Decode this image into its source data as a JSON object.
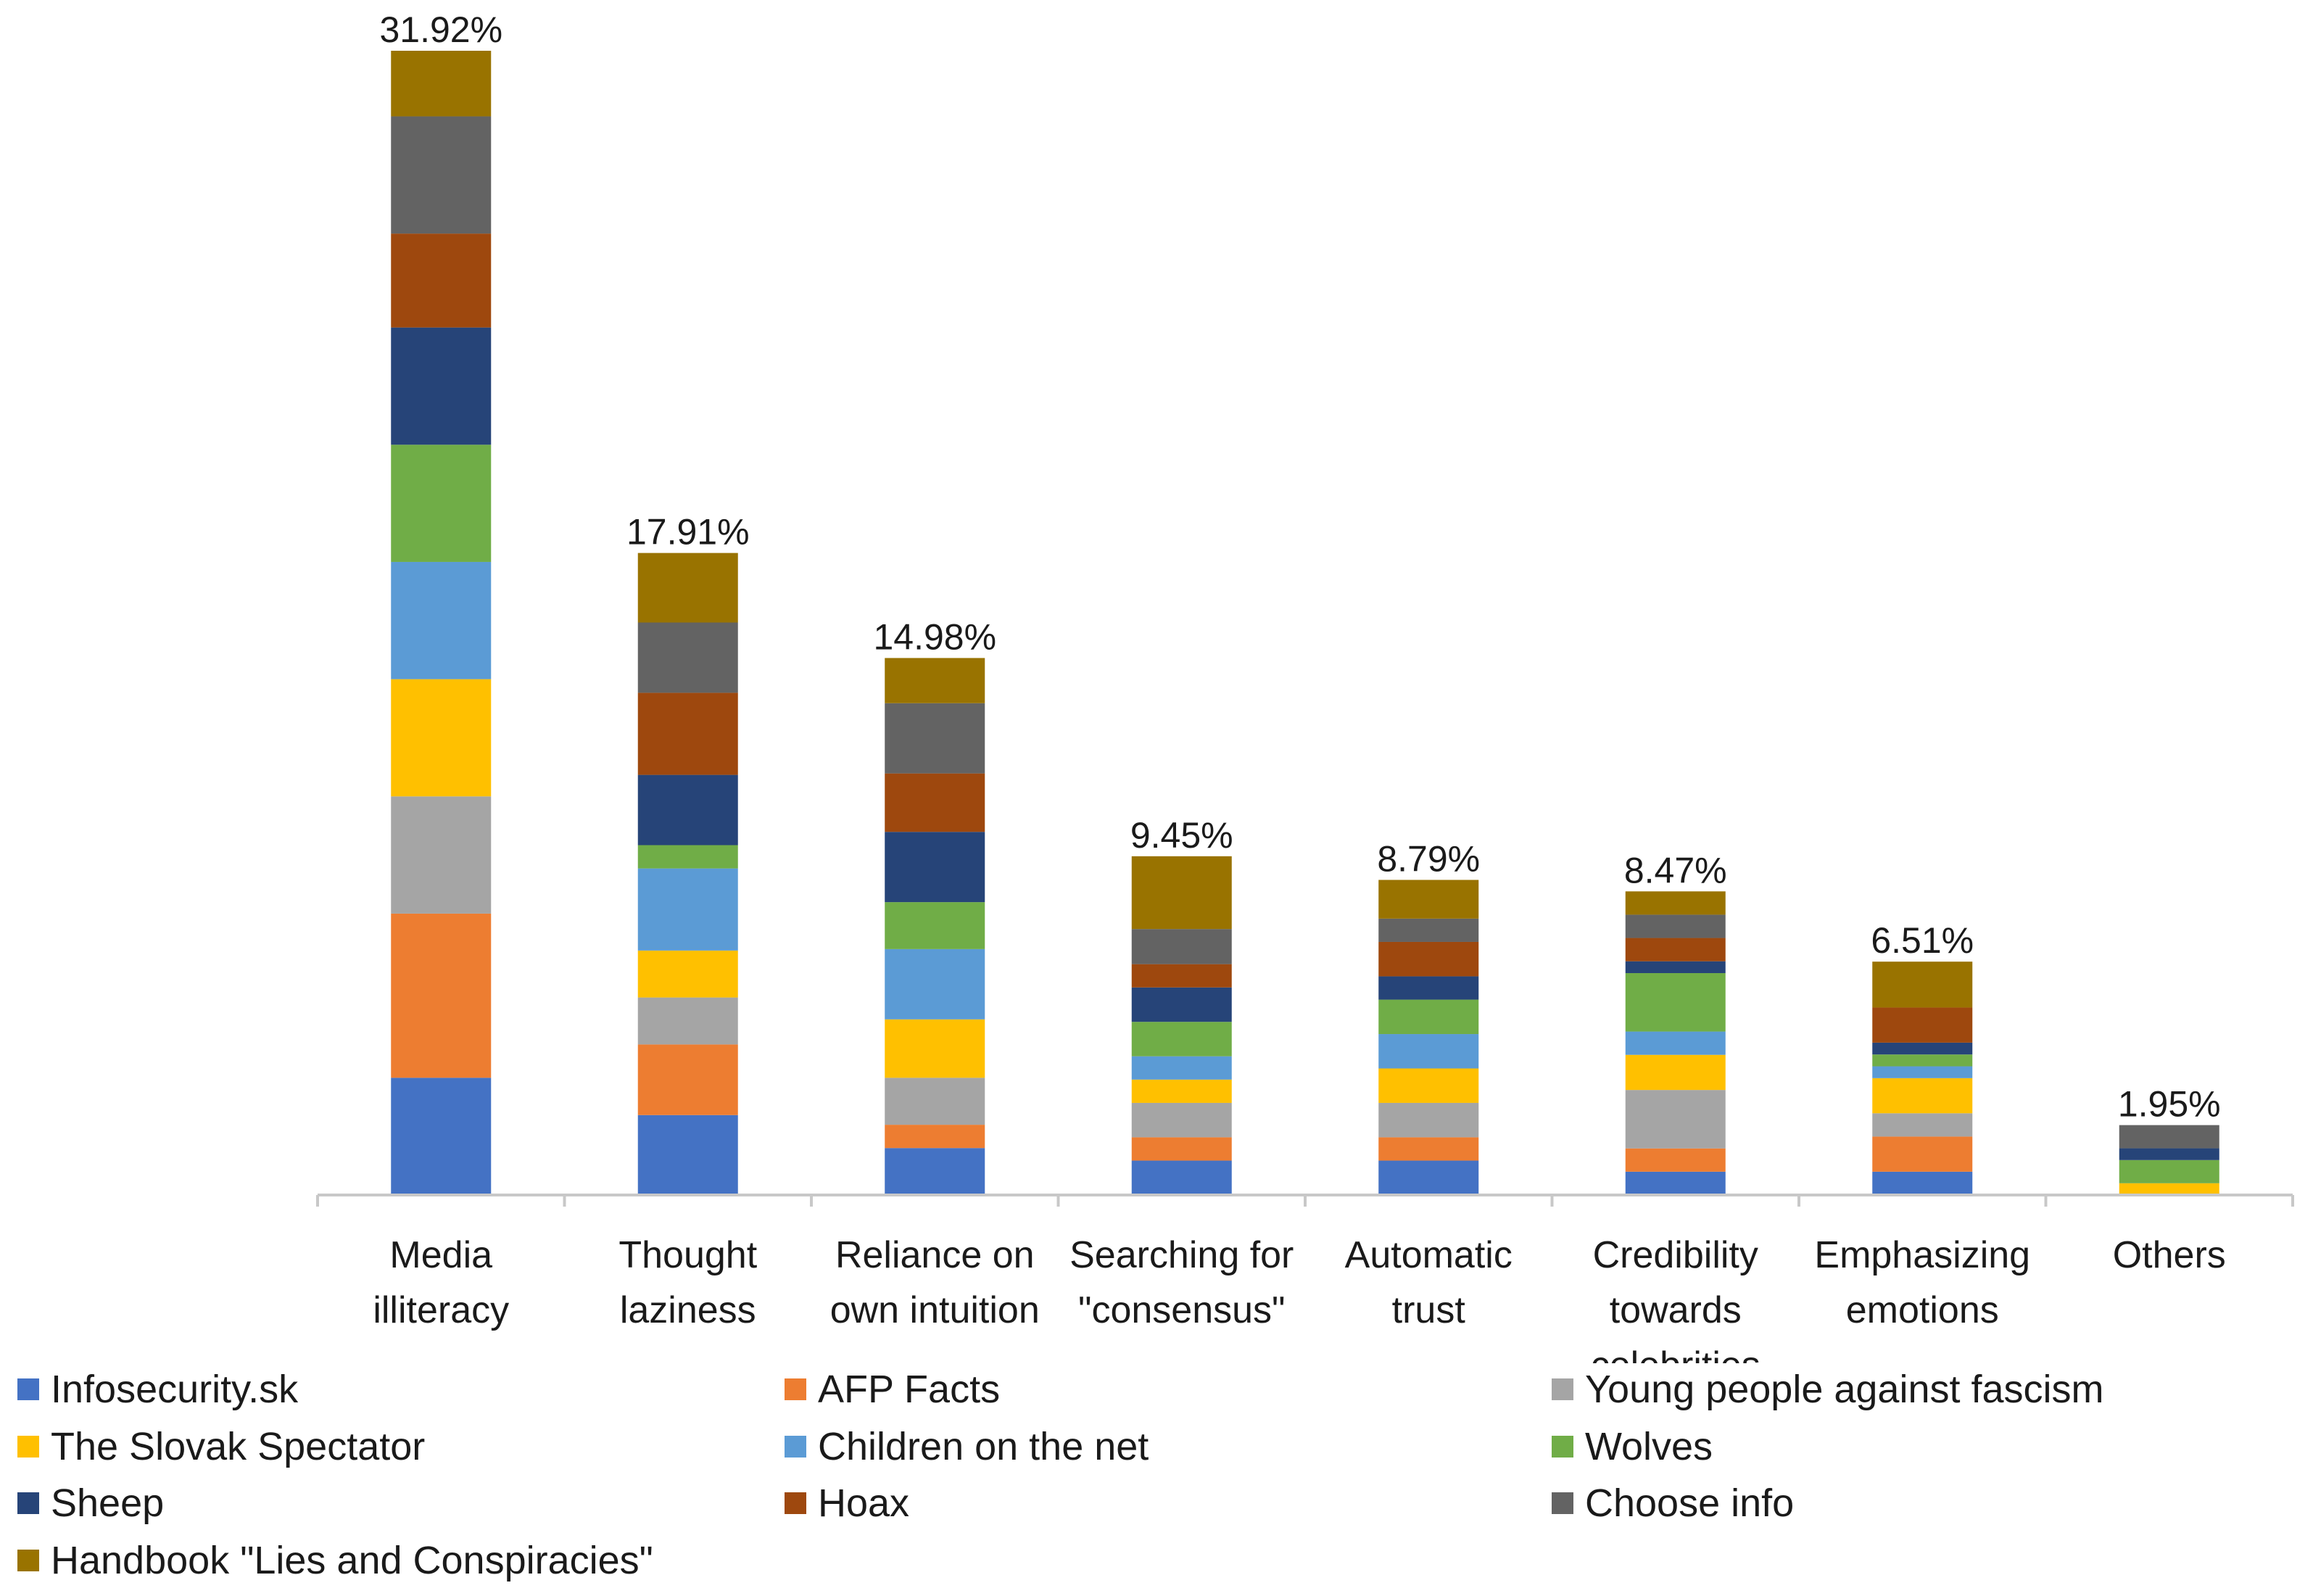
{
  "chart_data": {
    "type": "bar",
    "stacked": true,
    "title": "",
    "xlabel": "",
    "ylabel": "",
    "ylim": [
      0,
      32
    ],
    "grid": false,
    "legend_position": "bottom",
    "categories": [
      [
        "Media",
        "illiteracy"
      ],
      [
        "Thought",
        "laziness"
      ],
      [
        "Reliance on",
        "own intuition"
      ],
      [
        "Searching for",
        "\"consensus\""
      ],
      [
        "Automatic",
        "trust"
      ],
      [
        "Credibility",
        "towards",
        "celebrities"
      ],
      [
        "Emphasizing",
        "emotions"
      ],
      [
        "Others"
      ]
    ],
    "totals": [
      31.92,
      17.91,
      14.98,
      9.45,
      8.79,
      8.47,
      6.51,
      1.95
    ],
    "total_labels": [
      "31.92%",
      "17.91%",
      "14.98%",
      "9.45%",
      "8.79%",
      "8.47%",
      "6.51%",
      "1.95%"
    ],
    "series": [
      {
        "name": "Infosecurity.sk",
        "color": "#4472C4",
        "values": [
          3.27,
          2.23,
          1.31,
          0.96,
          0.96,
          0.65,
          0.65,
          0.0
        ]
      },
      {
        "name": "AFP Facts",
        "color": "#ED7D31",
        "values": [
          4.58,
          1.97,
          0.65,
          0.65,
          0.65,
          0.65,
          0.98,
          0.0
        ]
      },
      {
        "name": "Young people against fascism",
        "color": "#A5A5A5",
        "values": [
          3.27,
          1.31,
          1.31,
          0.96,
          0.96,
          1.63,
          0.65,
          0.0
        ]
      },
      {
        "name": "The Slovak Spectator",
        "color": "#FFC000",
        "values": [
          3.27,
          1.31,
          1.63,
          0.65,
          0.96,
          0.98,
          0.98,
          0.33
        ]
      },
      {
        "name": "Children on the net",
        "color": "#5B9BD5",
        "values": [
          3.27,
          2.29,
          1.96,
          0.65,
          0.96,
          0.65,
          0.33,
          0.0
        ]
      },
      {
        "name": "Wolves",
        "color": "#70AD47",
        "values": [
          3.27,
          0.65,
          1.31,
          0.96,
          0.96,
          1.63,
          0.33,
          0.65
        ]
      },
      {
        "name": "Sheep",
        "color": "#264478",
        "values": [
          3.27,
          1.96,
          1.96,
          0.96,
          0.65,
          0.33,
          0.33,
          0.33
        ]
      },
      {
        "name": "Hoax",
        "color": "#9E480E",
        "values": [
          2.62,
          2.29,
          1.63,
          0.65,
          0.96,
          0.65,
          0.98,
          0.0
        ]
      },
      {
        "name": "Choose info",
        "color": "#636363",
        "values": [
          3.27,
          1.96,
          1.96,
          0.98,
          0.65,
          0.65,
          0.0,
          0.65
        ]
      },
      {
        "name": "Handbook \"Lies and Conspiracies\"",
        "color": "#997300",
        "values": [
          1.83,
          1.94,
          1.26,
          2.03,
          1.08,
          0.65,
          1.28,
          0.0
        ]
      }
    ]
  }
}
